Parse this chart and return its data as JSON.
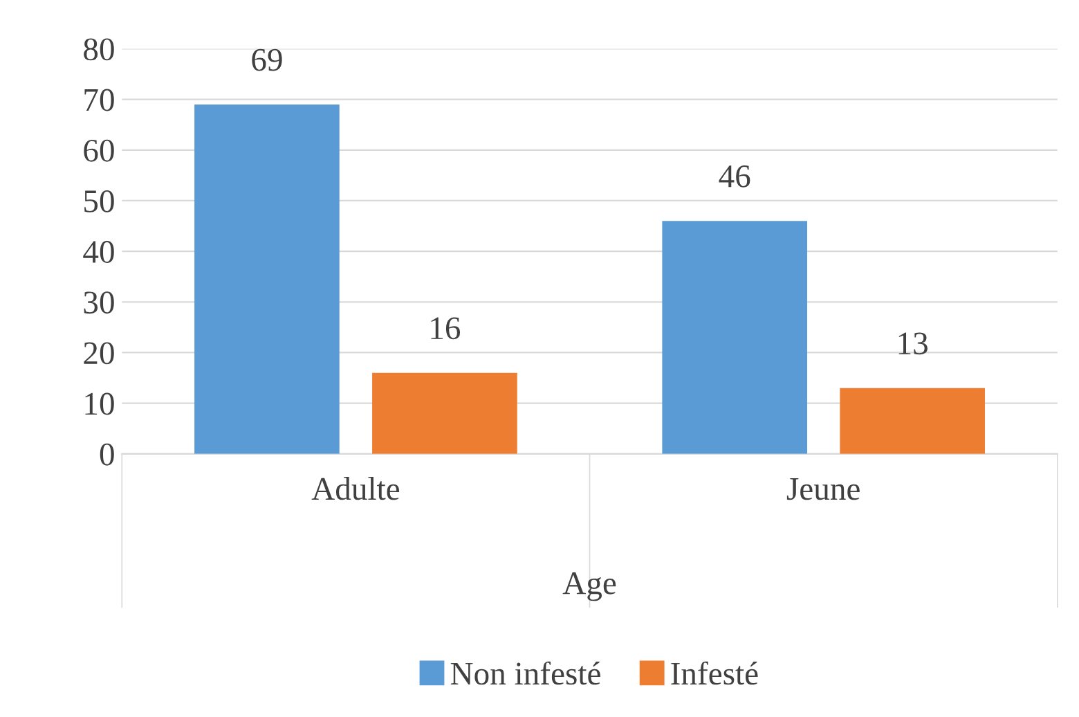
{
  "chart_data": {
    "type": "bar",
    "xlabel": "Age",
    "categories": [
      "Adulte",
      "Jeune"
    ],
    "series": [
      {
        "name": "Non infesté",
        "color": "#5b9bd5",
        "values": [
          69,
          46
        ]
      },
      {
        "name": "Infesté",
        "color": "#ed7d31",
        "values": [
          16,
          13
        ]
      }
    ],
    "ylim": [
      0,
      80
    ],
    "yticks": [
      0,
      10,
      20,
      30,
      40,
      50,
      60,
      70,
      80
    ],
    "grid": "y",
    "legend": "bottom",
    "data_labels": true
  }
}
